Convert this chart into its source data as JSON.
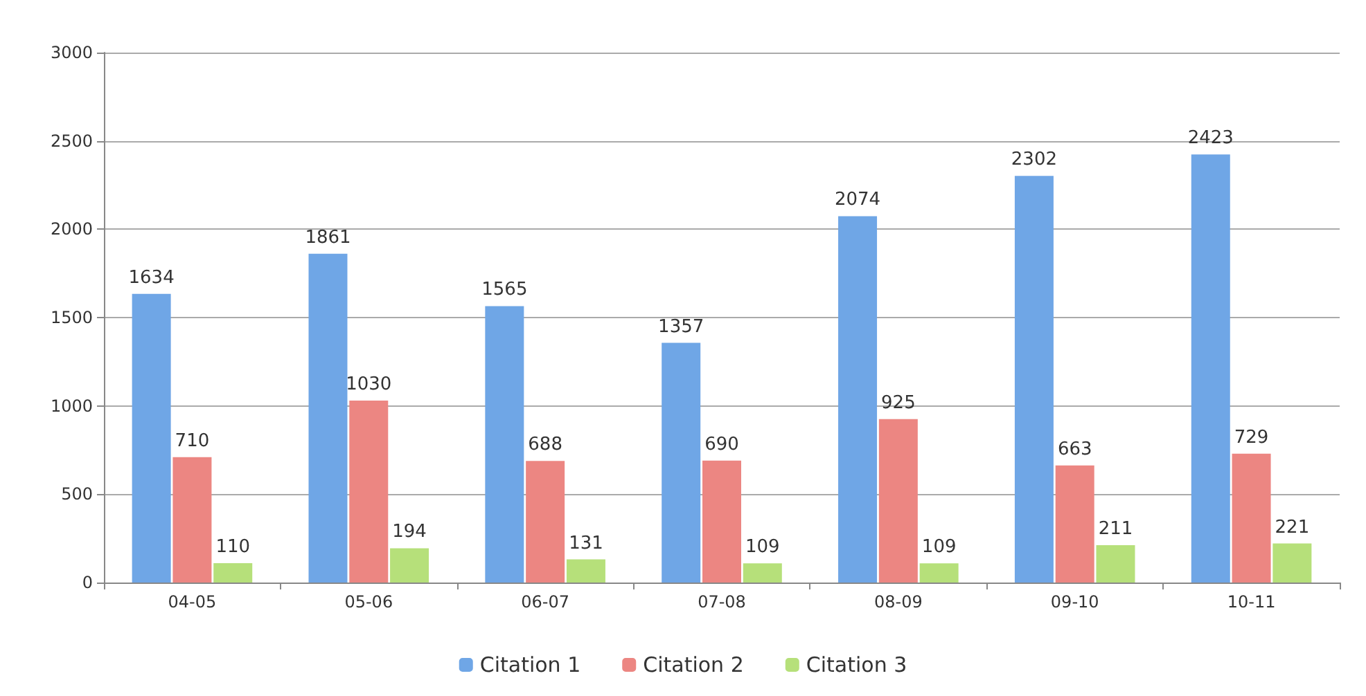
{
  "chart_data": {
    "type": "bar",
    "categories": [
      "04-05",
      "05-06",
      "06-07",
      "07-08",
      "08-09",
      "09-10",
      "10-11"
    ],
    "series": [
      {
        "name": "Citation 1",
        "color": "#6fa6e6",
        "values": [
          1634,
          1861,
          1565,
          1357,
          2074,
          2302,
          2423
        ]
      },
      {
        "name": "Citation 2",
        "color": "#ec8682",
        "values": [
          710,
          1030,
          688,
          690,
          925,
          663,
          729
        ]
      },
      {
        "name": "Citation 3",
        "color": "#b6e07a",
        "values": [
          110,
          194,
          131,
          109,
          109,
          211,
          221
        ]
      }
    ],
    "ylim": [
      0,
      3000
    ],
    "yticks": [
      0,
      500,
      1000,
      1500,
      2000,
      2500,
      3000
    ],
    "grid": "y",
    "legend": "bottom",
    "data_labels": true
  }
}
